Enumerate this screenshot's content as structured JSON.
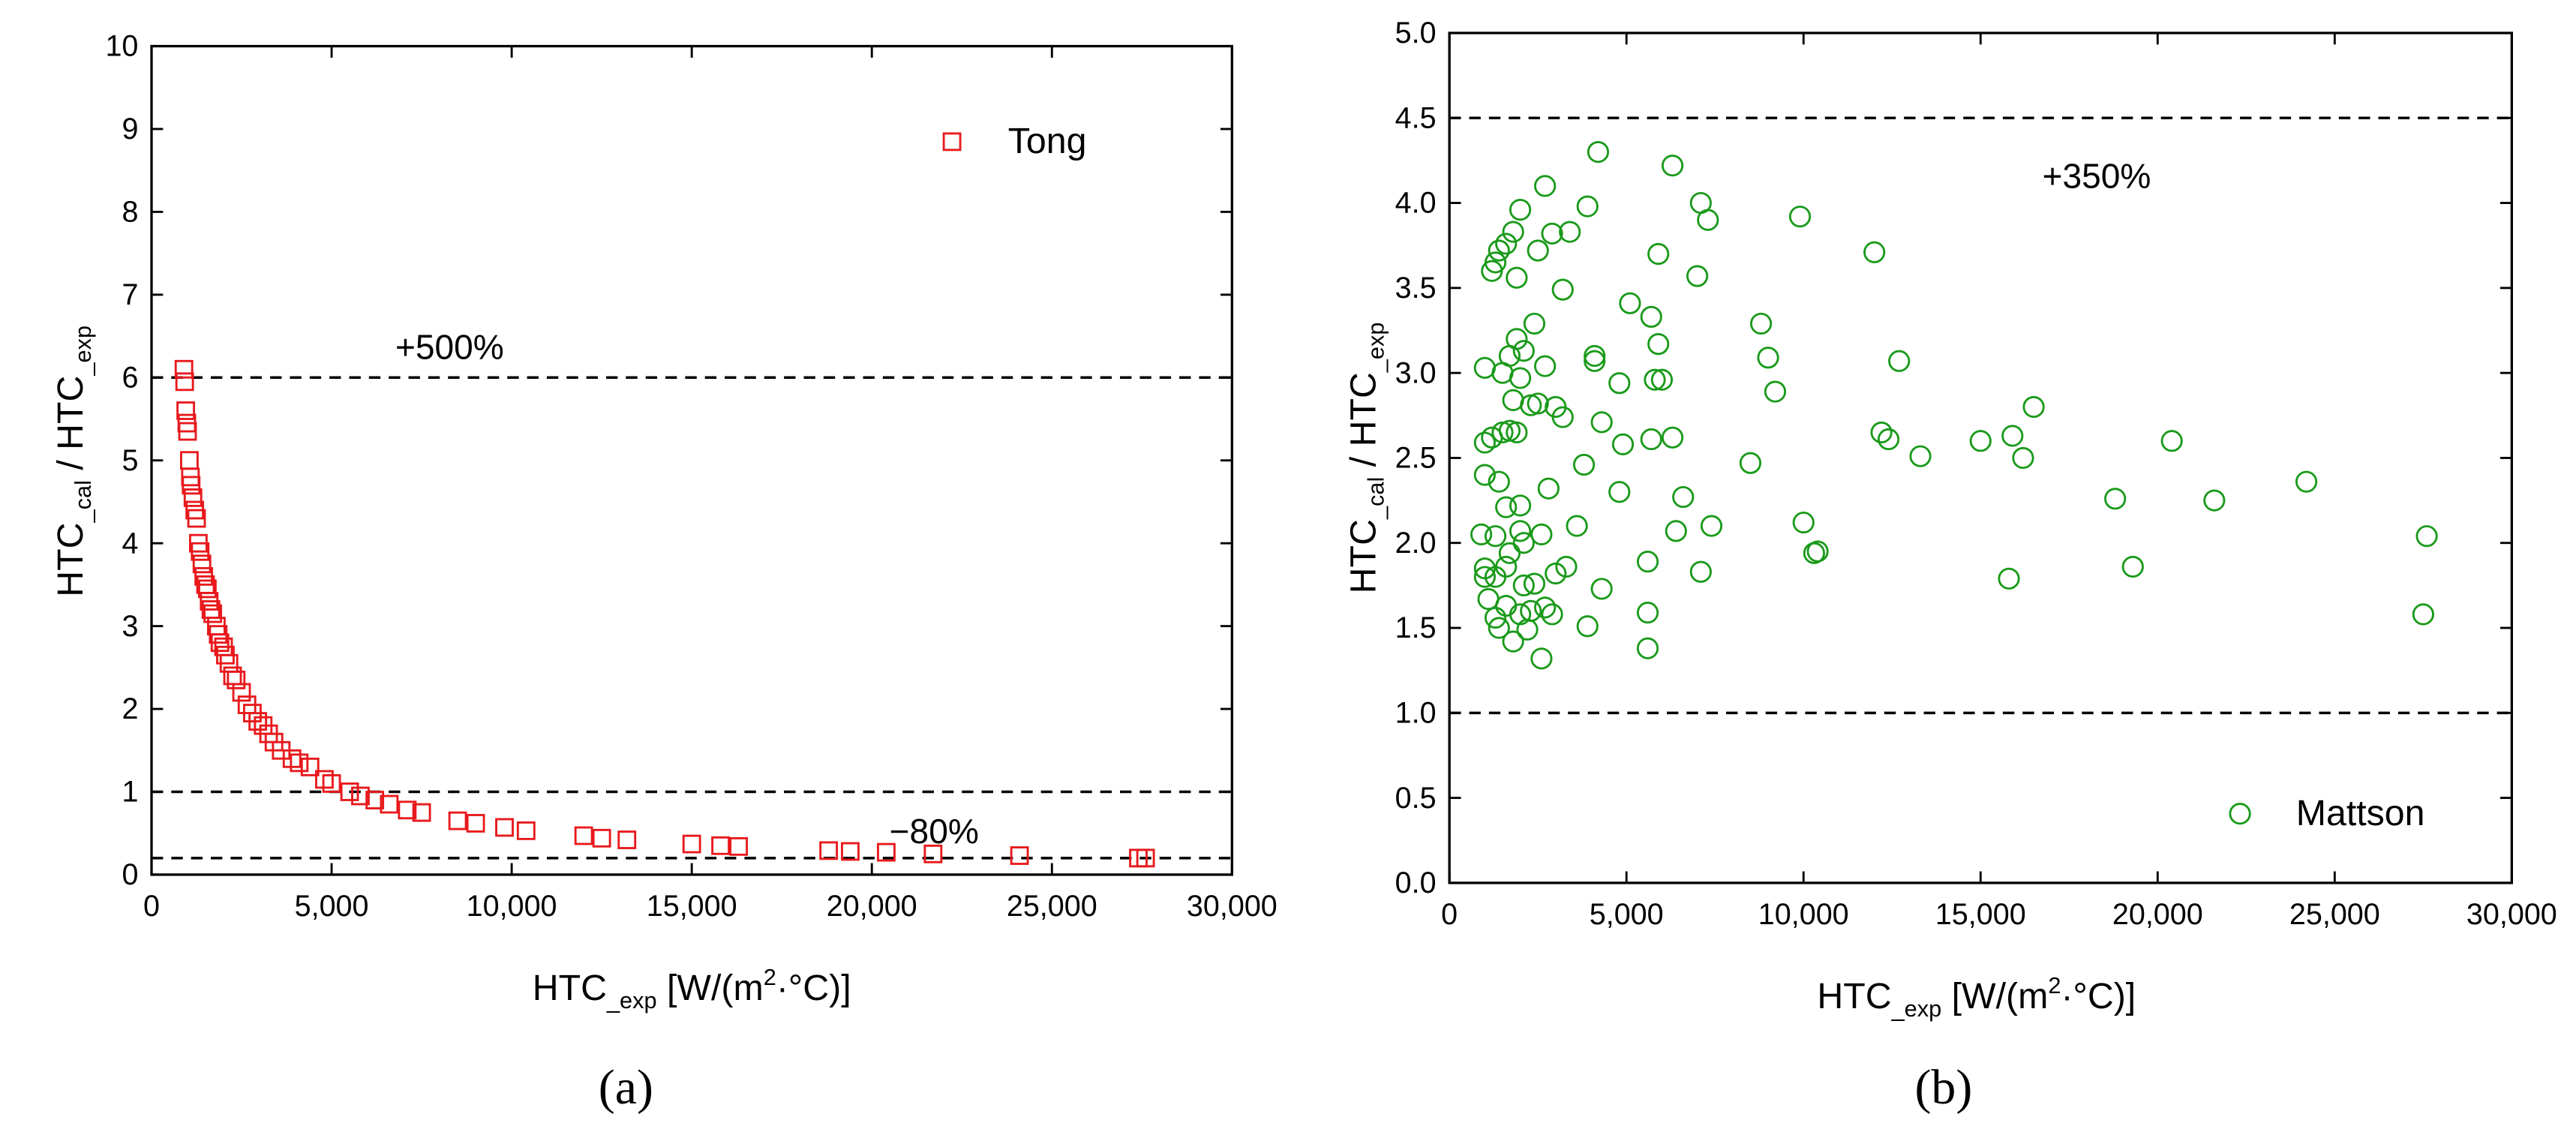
{
  "chart_data": [
    {
      "type": "scatter",
      "panel_label": "(a)",
      "xlabel_parts": [
        "HTC",
        "_exp",
        " [W/(m",
        "2",
        "·°C)]"
      ],
      "ylabel_parts": [
        "HTC",
        "_cal",
        " / HTC",
        "_exp"
      ],
      "xlim": [
        0,
        30000
      ],
      "xticks": [
        0,
        {
          "value": 5000,
          "label": "5,000"
        },
        {
          "value": 10000,
          "label": "10,000"
        },
        {
          "value": 15000,
          "label": "15,000"
        },
        {
          "value": 20000,
          "label": "20,000"
        },
        {
          "value": 25000,
          "label": "25,000"
        },
        {
          "value": 30000,
          "label": "30,000"
        }
      ],
      "ylim": [
        0,
        10
      ],
      "yticks": [
        0,
        1,
        2,
        3,
        4,
        5,
        6,
        7,
        8,
        9,
        10
      ],
      "reference_lines": [
        6,
        1,
        0.2
      ],
      "annotations": [
        "+500%",
        "−80%"
      ],
      "legend": "upper right",
      "marker": "square",
      "series": [
        {
          "name": "Tong",
          "color": "#e8191c",
          "x": [
            900,
            920,
            950,
            980,
            1000,
            1050,
            1080,
            1100,
            1150,
            1200,
            1250,
            1300,
            1350,
            1400,
            1450,
            1500,
            1550,
            1600,
            1650,
            1700,
            1800,
            1850,
            1900,
            2000,
            2050,
            2150,
            2250,
            2350,
            2500,
            2650,
            2800,
            2950,
            3100,
            3250,
            3400,
            3600,
            3900,
            4100,
            4400,
            4800,
            5000,
            5500,
            5800,
            6200,
            6600,
            7100,
            7500,
            8500,
            9000,
            9800,
            10400,
            12000,
            12500,
            13200,
            15000,
            15800,
            16300,
            18800,
            19400,
            20400,
            21700,
            24100,
            27400,
            27600
          ],
          "values": [
            6.1,
            5.95,
            5.6,
            5.45,
            5.35,
            5.0,
            4.8,
            4.7,
            4.55,
            4.4,
            4.3,
            4.0,
            3.9,
            3.75,
            3.6,
            3.5,
            3.45,
            3.3,
            3.2,
            3.15,
            3.0,
            2.9,
            2.8,
            2.75,
            2.65,
            2.55,
            2.4,
            2.35,
            2.2,
            2.05,
            1.95,
            1.85,
            1.8,
            1.7,
            1.6,
            1.5,
            1.4,
            1.35,
            1.3,
            1.15,
            1.1,
            1.0,
            0.95,
            0.9,
            0.85,
            0.78,
            0.75,
            0.65,
            0.62,
            0.57,
            0.53,
            0.47,
            0.44,
            0.42,
            0.37,
            0.35,
            0.34,
            0.29,
            0.28,
            0.27,
            0.25,
            0.23,
            0.2,
            0.2
          ]
        }
      ]
    },
    {
      "type": "scatter",
      "panel_label": "(b)",
      "xlabel_parts": [
        "HTC",
        "_exp",
        " [W/(m",
        "2",
        "·°C)]"
      ],
      "ylabel_parts": [
        "HTC",
        "_cal",
        " / HTC",
        "_exp"
      ],
      "xlim": [
        0,
        30000
      ],
      "xticks": [
        0,
        {
          "value": 5000,
          "label": "5,000"
        },
        {
          "value": 10000,
          "label": "10,000"
        },
        {
          "value": 15000,
          "label": "15,000"
        },
        {
          "value": 20000,
          "label": "20,000"
        },
        {
          "value": 25000,
          "label": "25,000"
        },
        {
          "value": 30000,
          "label": "30,000"
        }
      ],
      "ylim": [
        0,
        5
      ],
      "yticks": [
        {
          "value": 0,
          "label": "0.0"
        },
        0.5,
        {
          "value": 1,
          "label": "1.0"
        },
        1.5,
        {
          "value": 2,
          "label": "2.0"
        },
        2.5,
        {
          "value": 3,
          "label": "3.0"
        },
        3.5,
        {
          "value": 4,
          "label": "4.0"
        },
        4.5,
        {
          "value": 5,
          "label": "5.0"
        }
      ],
      "reference_lines": [
        4.5,
        1
      ],
      "annotations": [
        "+350%"
      ],
      "legend": "lower right",
      "marker": "circle",
      "series": [
        {
          "name": "Mattson",
          "color": "#1a9a1a",
          "x": [
            4200,
            6300,
            2700,
            7100,
            7300,
            9900,
            2000,
            3900,
            1800,
            2900,
            3400,
            1600,
            1400,
            1300,
            1200,
            2500,
            5900,
            12000,
            7000,
            1900,
            3200,
            5100,
            5700,
            2400,
            8800,
            1900,
            2100,
            5900,
            1700,
            4100,
            4100,
            9000,
            12700,
            1000,
            1500,
            2000,
            2700,
            4800,
            5800,
            6000,
            9200,
            1800,
            2300,
            2500,
            3000,
            3200,
            16500,
            4300,
            1500,
            1700,
            1900,
            1200,
            1000,
            4900,
            5700,
            6300,
            12200,
            12400,
            15000,
            15900,
            20400,
            13300,
            16200,
            3800,
            8500,
            1000,
            1400,
            2800,
            4800,
            6600,
            18800,
            21600,
            24200,
            1600,
            2000,
            7400,
            10000,
            900,
            1300,
            2000,
            2100,
            2600,
            3600,
            6400,
            27600,
            1700,
            10300,
            10400,
            1000,
            1300,
            1600,
            3300,
            5600,
            7100,
            19300,
            1000,
            15800,
            2100,
            2400,
            3000,
            4300,
            1100,
            1600,
            2700,
            1300,
            2000,
            2300,
            2900,
            5600,
            27500,
            1400,
            2200,
            3900,
            1800,
            5600,
            2600
          ],
          "values": [
            4.3,
            4.22,
            4.1,
            4.0,
            3.9,
            3.92,
            3.96,
            3.98,
            3.83,
            3.82,
            3.83,
            3.76,
            3.72,
            3.65,
            3.6,
            3.72,
            3.7,
            3.71,
            3.57,
            3.56,
            3.49,
            3.41,
            3.33,
            3.29,
            3.29,
            3.2,
            3.13,
            3.17,
            3.1,
            3.1,
            3.07,
            3.09,
            3.07,
            3.03,
            3.0,
            2.97,
            3.04,
            2.94,
            2.96,
            2.96,
            2.89,
            2.84,
            2.81,
            2.82,
            2.8,
            2.74,
            2.8,
            2.71,
            2.65,
            2.66,
            2.65,
            2.62,
            2.59,
            2.58,
            2.61,
            2.62,
            2.65,
            2.61,
            2.6,
            2.63,
            2.6,
            2.51,
            2.5,
            2.46,
            2.47,
            2.4,
            2.36,
            2.32,
            2.3,
            2.27,
            2.26,
            2.25,
            2.36,
            2.21,
            2.22,
            2.1,
            2.12,
            2.05,
            2.04,
            2.07,
            2.0,
            2.05,
            2.1,
            2.07,
            2.04,
            1.94,
            1.94,
            1.95,
            1.85,
            1.8,
            1.86,
            1.86,
            1.89,
            1.83,
            1.86,
            1.8,
            1.79,
            1.75,
            1.76,
            1.82,
            1.73,
            1.67,
            1.63,
            1.62,
            1.56,
            1.58,
            1.6,
            1.58,
            1.59,
            1.58,
            1.5,
            1.49,
            1.51,
            1.42,
            1.38,
            1.32
          ]
        }
      ]
    }
  ]
}
